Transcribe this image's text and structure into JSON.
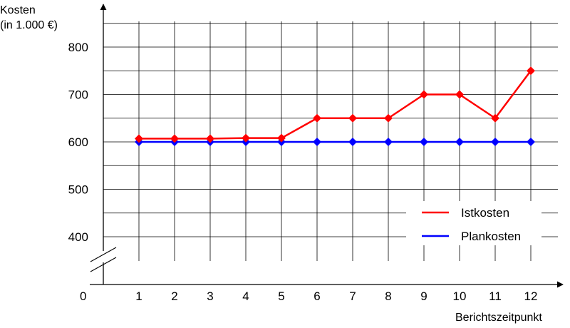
{
  "chart_data": {
    "type": "line",
    "ylabel_line1": "Kosten",
    "ylabel_line2": "(in 1.000 €)",
    "xlabel": "Berichtszeitpunkt",
    "origin_label": "0",
    "x": [
      1,
      2,
      3,
      4,
      5,
      6,
      7,
      8,
      9,
      10,
      11,
      12
    ],
    "x_tick_labels": [
      "1",
      "2",
      "3",
      "4",
      "5",
      "6",
      "7",
      "8",
      "9",
      "10",
      "11",
      "12"
    ],
    "y_tick_values": [
      400,
      500,
      600,
      700,
      800
    ],
    "y_tick_labels": [
      "400",
      "500",
      "600",
      "700",
      "800"
    ],
    "ylim": [
      350,
      850
    ],
    "y_axis_break": true,
    "grid": true,
    "legend_position": "bottom-right",
    "series": [
      {
        "name": "Istkosten",
        "color": "#ff0000",
        "values": [
          607,
          607,
          607,
          608,
          608,
          650,
          650,
          650,
          700,
          700,
          650,
          750
        ]
      },
      {
        "name": "Plankosten",
        "color": "#0000ff",
        "values": [
          600,
          600,
          600,
          600,
          600,
          600,
          600,
          600,
          600,
          600,
          600,
          600
        ]
      }
    ]
  }
}
